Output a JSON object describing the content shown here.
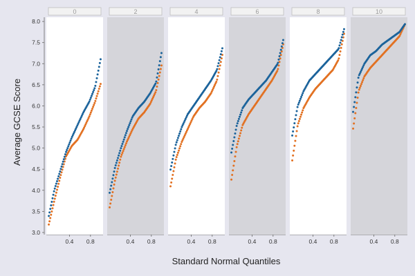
{
  "chart_data": {
    "type": "scatter",
    "xlabel": "Standard Normal Quantiles",
    "ylabel": "Average GCSE Score",
    "ylim": [
      2.95,
      8.1
    ],
    "y_ticks": [
      "3.0",
      "3.5",
      "4.0",
      "4.5",
      "5.0",
      "5.5",
      "6.0",
      "6.5",
      "7.0",
      "7.5",
      "8.0"
    ],
    "x_ticks": [
      "0.4",
      "0.8"
    ],
    "panel_xlim": [
      0,
      1
    ],
    "panels": [
      "0",
      "2",
      "4",
      "6",
      "8",
      "10"
    ],
    "panel_backgrounds": [
      "#ffffff",
      "#d5d5da",
      "#ffffff",
      "#d5d5da",
      "#ffffff",
      "#d5d5da"
    ],
    "strip": {
      "fill": "#f2f2f2",
      "border": "#bdbdbd",
      "text_color": "#9a9a9a"
    },
    "series_colors": [
      "#1b639b",
      "#e27122"
    ],
    "curves": [
      {
        "blue": [
          3.35,
          4.0,
          4.45,
          4.9,
          5.25,
          5.55,
          5.85,
          6.1,
          6.45,
          7.15
        ],
        "orange": [
          3.15,
          3.75,
          4.3,
          4.8,
          5.05,
          5.2,
          5.45,
          5.75,
          6.1,
          6.55
        ]
      },
      {
        "blue": [
          3.9,
          4.55,
          5.0,
          5.4,
          5.75,
          5.95,
          6.1,
          6.3,
          6.55,
          7.3
        ],
        "orange": [
          3.55,
          4.25,
          4.8,
          5.15,
          5.45,
          5.7,
          5.85,
          6.05,
          6.35,
          7.0
        ]
      },
      {
        "blue": [
          4.45,
          5.1,
          5.5,
          5.8,
          6.0,
          6.2,
          6.4,
          6.6,
          6.85,
          7.4
        ],
        "orange": [
          4.05,
          4.75,
          5.15,
          5.45,
          5.75,
          5.95,
          6.1,
          6.3,
          6.6,
          7.25
        ]
      },
      {
        "blue": [
          4.85,
          5.55,
          5.95,
          6.15,
          6.3,
          6.45,
          6.6,
          6.8,
          7.0,
          7.6
        ],
        "orange": [
          4.2,
          5.05,
          5.55,
          5.8,
          6.0,
          6.2,
          6.4,
          6.6,
          6.85,
          7.5
        ]
      },
      {
        "blue": [
          5.25,
          6.0,
          6.35,
          6.6,
          6.75,
          6.9,
          7.05,
          7.2,
          7.35,
          7.85
        ],
        "orange": [
          4.65,
          5.55,
          5.95,
          6.2,
          6.4,
          6.55,
          6.7,
          6.85,
          7.1,
          7.75
        ]
      },
      {
        "blue": [
          5.8,
          6.7,
          7.0,
          7.2,
          7.3,
          7.45,
          7.55,
          7.65,
          7.75,
          7.95
        ],
        "orange": [
          5.4,
          6.35,
          6.7,
          6.9,
          7.05,
          7.2,
          7.35,
          7.5,
          7.65,
          7.95
        ]
      }
    ]
  }
}
